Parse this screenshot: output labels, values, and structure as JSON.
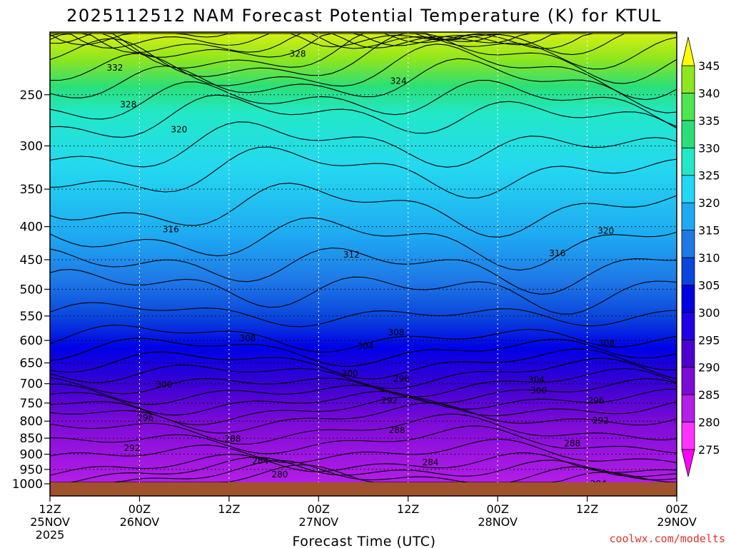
{
  "chart_data": {
    "type": "heatmap",
    "title": "2025112512 NAM Forecast Potential Temperature (K) for KTUL",
    "xlabel": "Forecast Time (UTC)",
    "ylabel": "",
    "y_levels": [
      250,
      300,
      350,
      400,
      450,
      500,
      550,
      600,
      650,
      700,
      750,
      800,
      850,
      900,
      950,
      1000
    ],
    "y_scale": "log",
    "y_range": [
      200,
      1000
    ],
    "x_ticks": [
      {
        "hour": 0,
        "label": "12Z",
        "date": "25NOV",
        "year": "2025"
      },
      {
        "hour": 12,
        "label": "00Z",
        "date": "26NOV"
      },
      {
        "hour": 24,
        "label": "12Z"
      },
      {
        "hour": 36,
        "label": "00Z",
        "date": "27NOV"
      },
      {
        "hour": 48,
        "label": "12Z"
      },
      {
        "hour": 60,
        "label": "00Z",
        "date": "28NOV"
      },
      {
        "hour": 72,
        "label": "12Z"
      },
      {
        "hour": 84,
        "label": "00Z",
        "date": "29NOV"
      }
    ],
    "x_range": [
      0,
      84
    ],
    "colorbar": {
      "levels": [
        275,
        280,
        285,
        290,
        295,
        300,
        305,
        310,
        315,
        320,
        325,
        330,
        335,
        340,
        345
      ],
      "colors": [
        "#ff33ff",
        "#d21ef2",
        "#a314e0",
        "#7d0bd6",
        "#4d00cf",
        "#1f00e6",
        "#0000e0",
        "#0a3cdc",
        "#1e6ee8",
        "#1ea0f5",
        "#20c8ff",
        "#22ebe8",
        "#33f0b4",
        "#4be678",
        "#6ee630",
        "#a6f014",
        "#dcff14",
        "#ffff00"
      ],
      "ticks": [
        275,
        280,
        285,
        290,
        295,
        300,
        305,
        310,
        315,
        320,
        325,
        330,
        335,
        340,
        345
      ]
    },
    "contour_interval": 2,
    "contour_labels": [
      {
        "value": 328,
        "hour": 33.2,
        "p": 216
      },
      {
        "value": 332,
        "hour": 8.7,
        "p": 227
      },
      {
        "value": 324,
        "hour": 46.7,
        "p": 238
      },
      {
        "value": 328,
        "hour": 10.5,
        "p": 259
      },
      {
        "value": 320,
        "hour": 17.3,
        "p": 283
      },
      {
        "value": 316,
        "hour": 16.2,
        "p": 404
      },
      {
        "value": 320,
        "hour": 74.5,
        "p": 406
      },
      {
        "value": 312,
        "hour": 40.4,
        "p": 442
      },
      {
        "value": 316,
        "hour": 68.0,
        "p": 440
      },
      {
        "value": 308,
        "hour": 46.4,
        "p": 583
      },
      {
        "value": 308,
        "hour": 26.5,
        "p": 595
      },
      {
        "value": 304,
        "hour": 42.3,
        "p": 612
      },
      {
        "value": 308,
        "hour": 74.6,
        "p": 606
      },
      {
        "value": 300,
        "hour": 40.2,
        "p": 675
      },
      {
        "value": 296,
        "hour": 47.1,
        "p": 688
      },
      {
        "value": 304,
        "hour": 65.2,
        "p": 690
      },
      {
        "value": 300,
        "hour": 15.3,
        "p": 702
      },
      {
        "value": 300,
        "hour": 65.5,
        "p": 718
      },
      {
        "value": 292,
        "hour": 45.5,
        "p": 744
      },
      {
        "value": 296,
        "hour": 73.2,
        "p": 744
      },
      {
        "value": 296,
        "hour": 12.8,
        "p": 790
      },
      {
        "value": 292,
        "hour": 73.8,
        "p": 798
      },
      {
        "value": 288,
        "hour": 24.5,
        "p": 852
      },
      {
        "value": 288,
        "hour": 46.5,
        "p": 826
      },
      {
        "value": 288,
        "hour": 70.0,
        "p": 866
      },
      {
        "value": 292,
        "hour": 11.0,
        "p": 881
      },
      {
        "value": 284,
        "hour": 28.2,
        "p": 922
      },
      {
        "value": 284,
        "hour": 51.0,
        "p": 926
      },
      {
        "value": 280,
        "hour": 30.8,
        "p": 967
      },
      {
        "value": 284,
        "hour": 73.5,
        "p": 1000
      }
    ]
  },
  "credit": "coolwx.com/modelts"
}
